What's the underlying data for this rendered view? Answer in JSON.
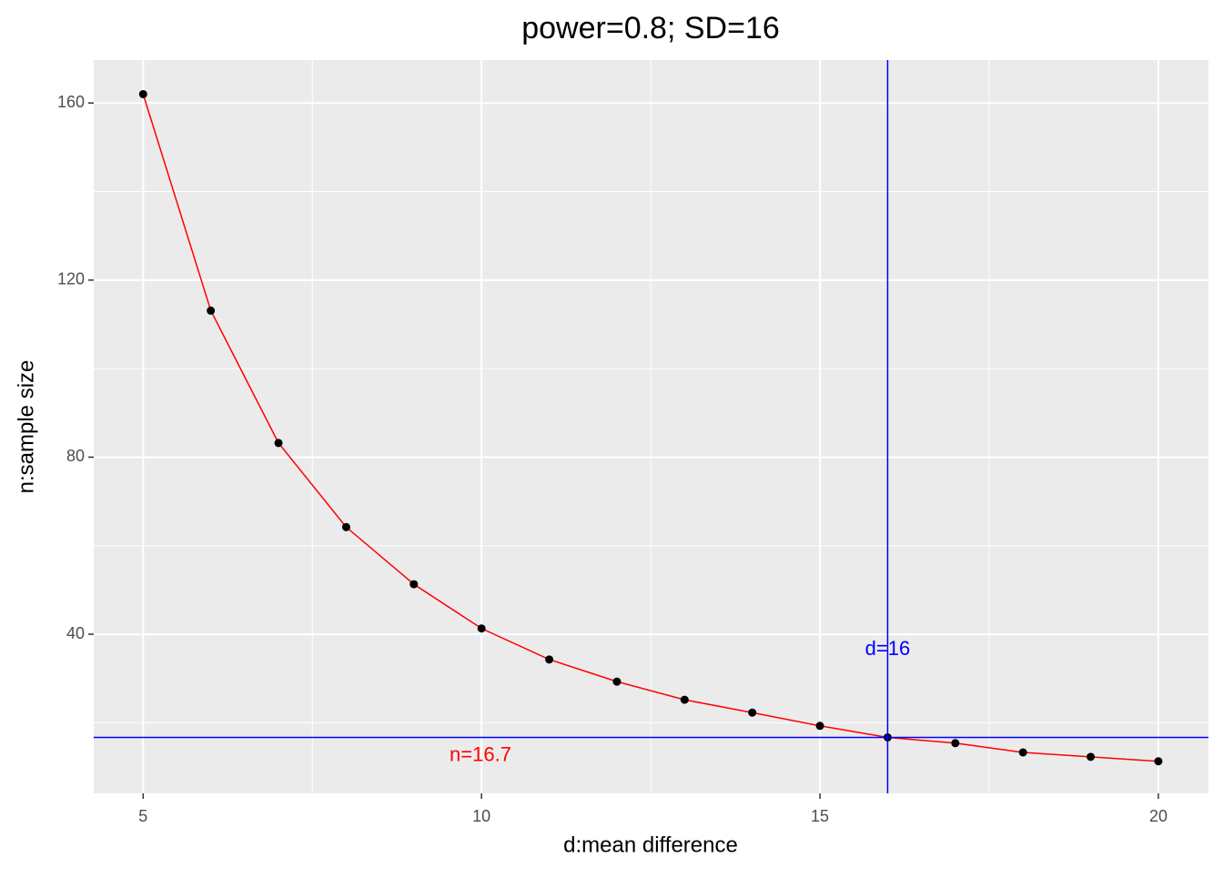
{
  "chart_data": {
    "type": "line",
    "title": "power=0.8; SD=16",
    "x_label": "d:mean difference",
    "y_label": "n:sample size",
    "x": [
      5,
      6,
      7,
      8,
      9,
      10,
      11,
      12,
      13,
      14,
      15,
      16,
      17,
      18,
      19,
      20
    ],
    "series": [
      {
        "color": "#ff0000",
        "point_color": "#000000",
        "values": [
          162,
          113.1,
          83.2,
          64.2,
          51.3,
          41.3,
          34.3,
          29.3,
          25.2,
          22.3,
          19.3,
          16.7,
          15.4,
          13.3,
          12.3,
          11.3
        ]
      }
    ],
    "xlim": [
      4.27,
      20.74
    ],
    "ylim": [
      4.05,
      169.7
    ],
    "xticks": [
      5,
      10,
      15,
      20
    ],
    "yticks": [
      40,
      80,
      120,
      160
    ],
    "x_minor_breaks": [
      7.5,
      12.5,
      17.5
    ],
    "y_minor_breaks": [
      20,
      60,
      100,
      140
    ],
    "grid": true,
    "reference_lines": {
      "color": "#0000ff",
      "h": 16.7,
      "v": 16
    },
    "annotations": [
      {
        "text": "n=16.7",
        "color": "#ff0000"
      },
      {
        "text": "d=16",
        "color": "#0000ff"
      }
    ]
  }
}
